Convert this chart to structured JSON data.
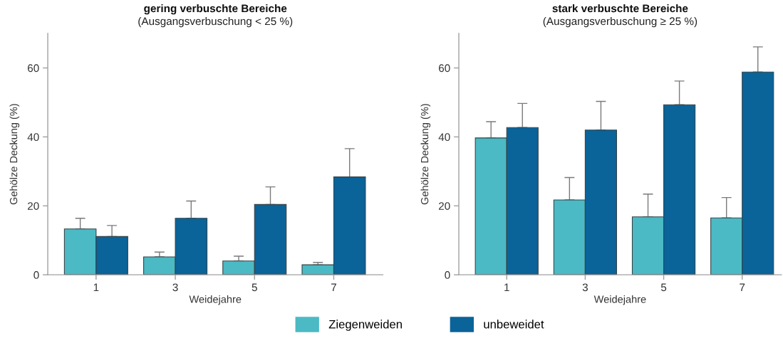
{
  "chart_data": [
    {
      "type": "bar",
      "title": "gering verbuschte Bereiche",
      "subtitle": "(Ausgangsverbuschung < 25 %)",
      "xlabel": "Weidejahre",
      "ylabel": "Gehölze Deckung (%)",
      "categories": [
        "1",
        "3",
        "5",
        "7"
      ],
      "ylim": [
        0,
        70
      ],
      "yticks": [
        0,
        20,
        40,
        60
      ],
      "legend": "bottom",
      "series": [
        {
          "name": "Ziegenweiden",
          "color": "#4bbac4",
          "values": [
            13.3,
            5.2,
            4.0,
            2.9
          ],
          "errors": [
            [
              13.3,
              16.4
            ],
            [
              5.2,
              6.6
            ],
            [
              4.0,
              5.4
            ],
            [
              2.9,
              3.6
            ]
          ]
        },
        {
          "name": "unbeweidet",
          "color": "#0a6399",
          "values": [
            11.1,
            16.4,
            20.4,
            28.4
          ],
          "errors": [
            [
              11.1,
              14.3
            ],
            [
              16.4,
              21.4
            ],
            [
              20.4,
              25.5
            ],
            [
              28.4,
              36.6
            ]
          ]
        }
      ]
    },
    {
      "type": "bar",
      "title": "stark verbuschte Bereiche",
      "subtitle": "(Ausgangsverbuschung ≥ 25 %)",
      "xlabel": "Weidejahre",
      "ylabel": "Gehölze Deckung (%)",
      "categories": [
        "1",
        "3",
        "5",
        "7"
      ],
      "ylim": [
        0,
        70
      ],
      "yticks": [
        0,
        20,
        40,
        60
      ],
      "series": [
        {
          "name": "Ziegenweiden",
          "color": "#4bbac4",
          "values": [
            39.7,
            21.7,
            16.8,
            16.5
          ],
          "errors": [
            [
              39.7,
              44.4
            ],
            [
              21.7,
              28.2
            ],
            [
              16.8,
              23.4
            ],
            [
              16.5,
              22.4
            ]
          ]
        },
        {
          "name": "unbeweidet",
          "color": "#0a6399",
          "values": [
            42.7,
            42.0,
            49.3,
            58.8
          ],
          "errors": [
            [
              42.7,
              49.7
            ],
            [
              42.0,
              50.3
            ],
            [
              49.3,
              56.2
            ],
            [
              58.8,
              66.1
            ]
          ]
        }
      ]
    }
  ]
}
